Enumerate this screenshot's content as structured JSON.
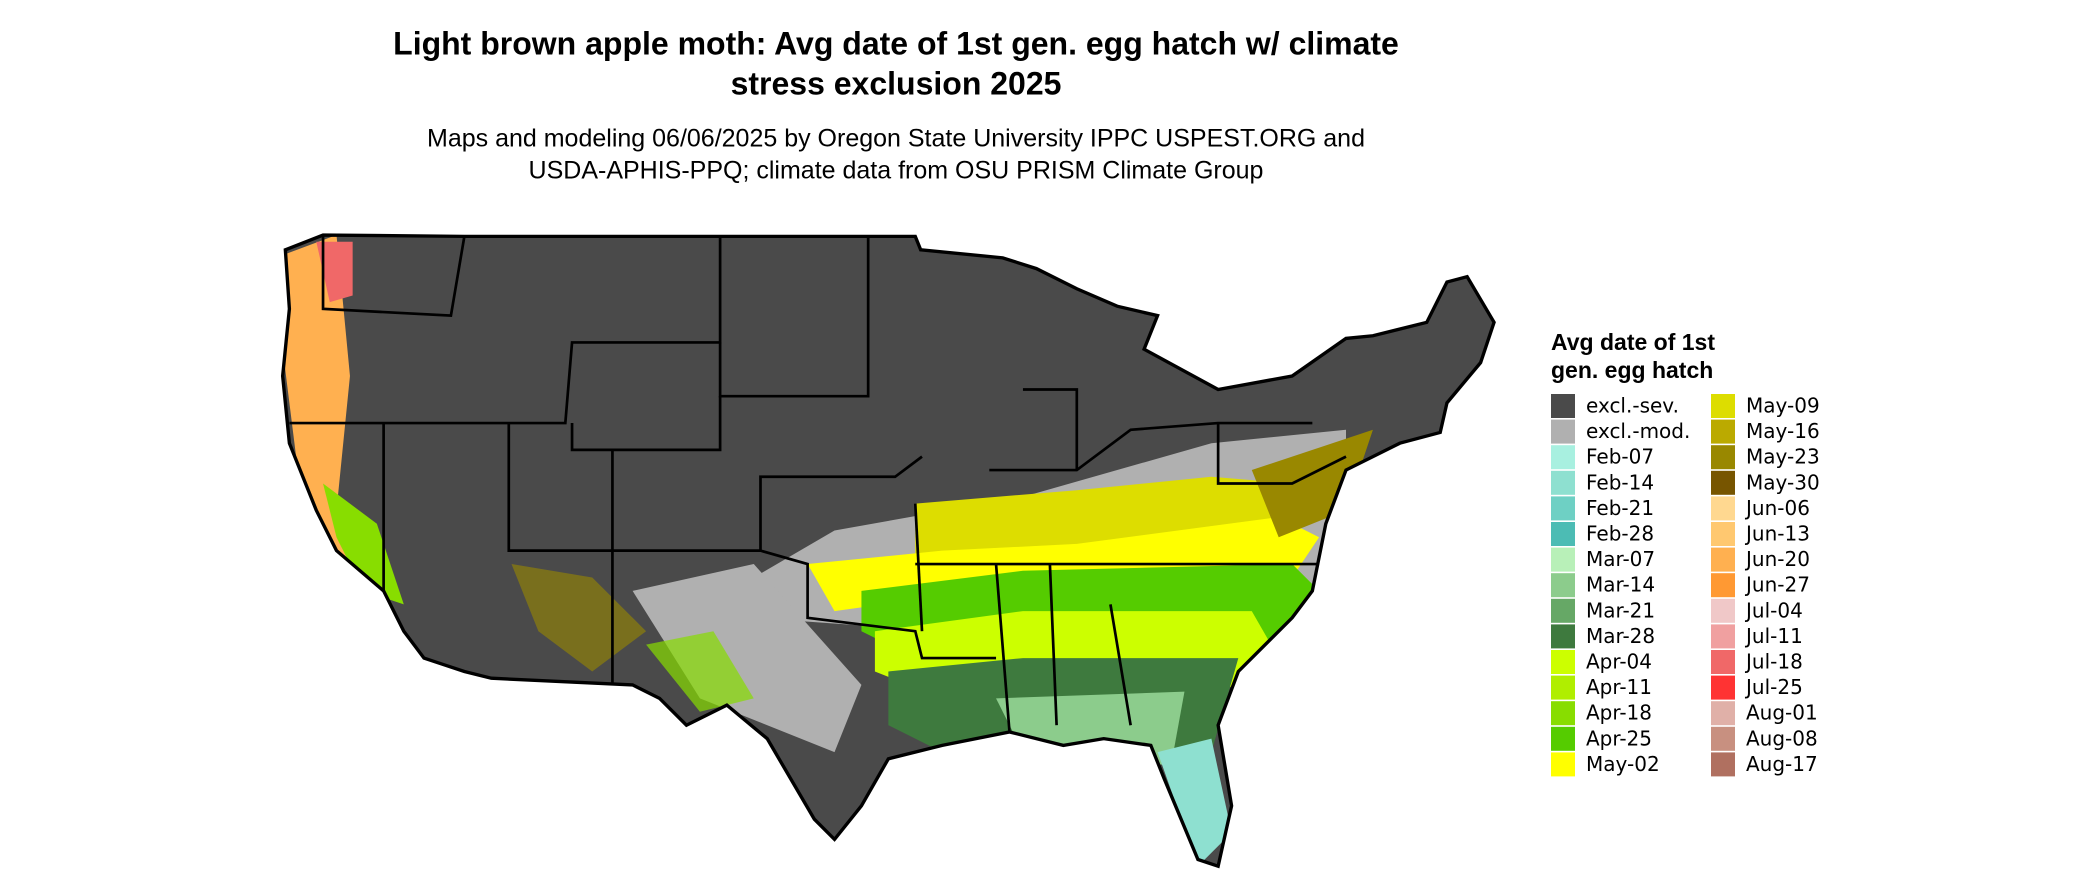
{
  "title": [
    "Light brown apple moth: Avg date of 1st gen. egg hatch w/ climate",
    "stress exclusion 2025"
  ],
  "subtitle": [
    "Maps and modeling 06/06/2025 by Oregon State University IPPC USPEST.ORG and",
    "USDA-APHIS-PPQ; climate data from OSU PRISM Climate Group"
  ],
  "legend": {
    "title": [
      "Avg date of 1st",
      "gen. egg hatch"
    ],
    "items": [
      {
        "label": "excl.-sev.",
        "color": "#4a4a4a"
      },
      {
        "label": "excl.-mod.",
        "color": "#b0b0b0"
      },
      {
        "label": "Feb-07",
        "color": "#a8f0e0"
      },
      {
        "label": "Feb-14",
        "color": "#8ee0d0"
      },
      {
        "label": "Feb-21",
        "color": "#6ed0c4"
      },
      {
        "label": "Feb-28",
        "color": "#4cbcb4"
      },
      {
        "label": "Mar-07",
        "color": "#b8f0b8"
      },
      {
        "label": "Mar-14",
        "color": "#8ccc8c"
      },
      {
        "label": "Mar-21",
        "color": "#66a866"
      },
      {
        "label": "Mar-28",
        "color": "#3e7a3e"
      },
      {
        "label": "Apr-04",
        "color": "#ccff00"
      },
      {
        "label": "Apr-11",
        "color": "#b0ee00"
      },
      {
        "label": "Apr-18",
        "color": "#88dd00"
      },
      {
        "label": "Apr-25",
        "color": "#55cc00"
      },
      {
        "label": "May-02",
        "color": "#ffff00"
      },
      {
        "label": "May-09",
        "color": "#dddd00"
      },
      {
        "label": "May-16",
        "color": "#bbaa00"
      },
      {
        "label": "May-23",
        "color": "#998800"
      },
      {
        "label": "May-30",
        "color": "#775500"
      },
      {
        "label": "Jun-06",
        "color": "#ffd890"
      },
      {
        "label": "Jun-13",
        "color": "#ffc870"
      },
      {
        "label": "Jun-20",
        "color": "#ffb050"
      },
      {
        "label": "Jun-27",
        "color": "#ff9933"
      },
      {
        "label": "Jul-04",
        "color": "#f0c8c8"
      },
      {
        "label": "Jul-11",
        "color": "#f0a0a0"
      },
      {
        "label": "Jul-18",
        "color": "#f06868"
      },
      {
        "label": "Jul-25",
        "color": "#ff3333"
      },
      {
        "label": "Aug-01",
        "color": "#e0b0a8"
      },
      {
        "label": "Aug-08",
        "color": "#c89080"
      },
      {
        "label": "Aug-17",
        "color": "#b07060"
      }
    ]
  }
}
